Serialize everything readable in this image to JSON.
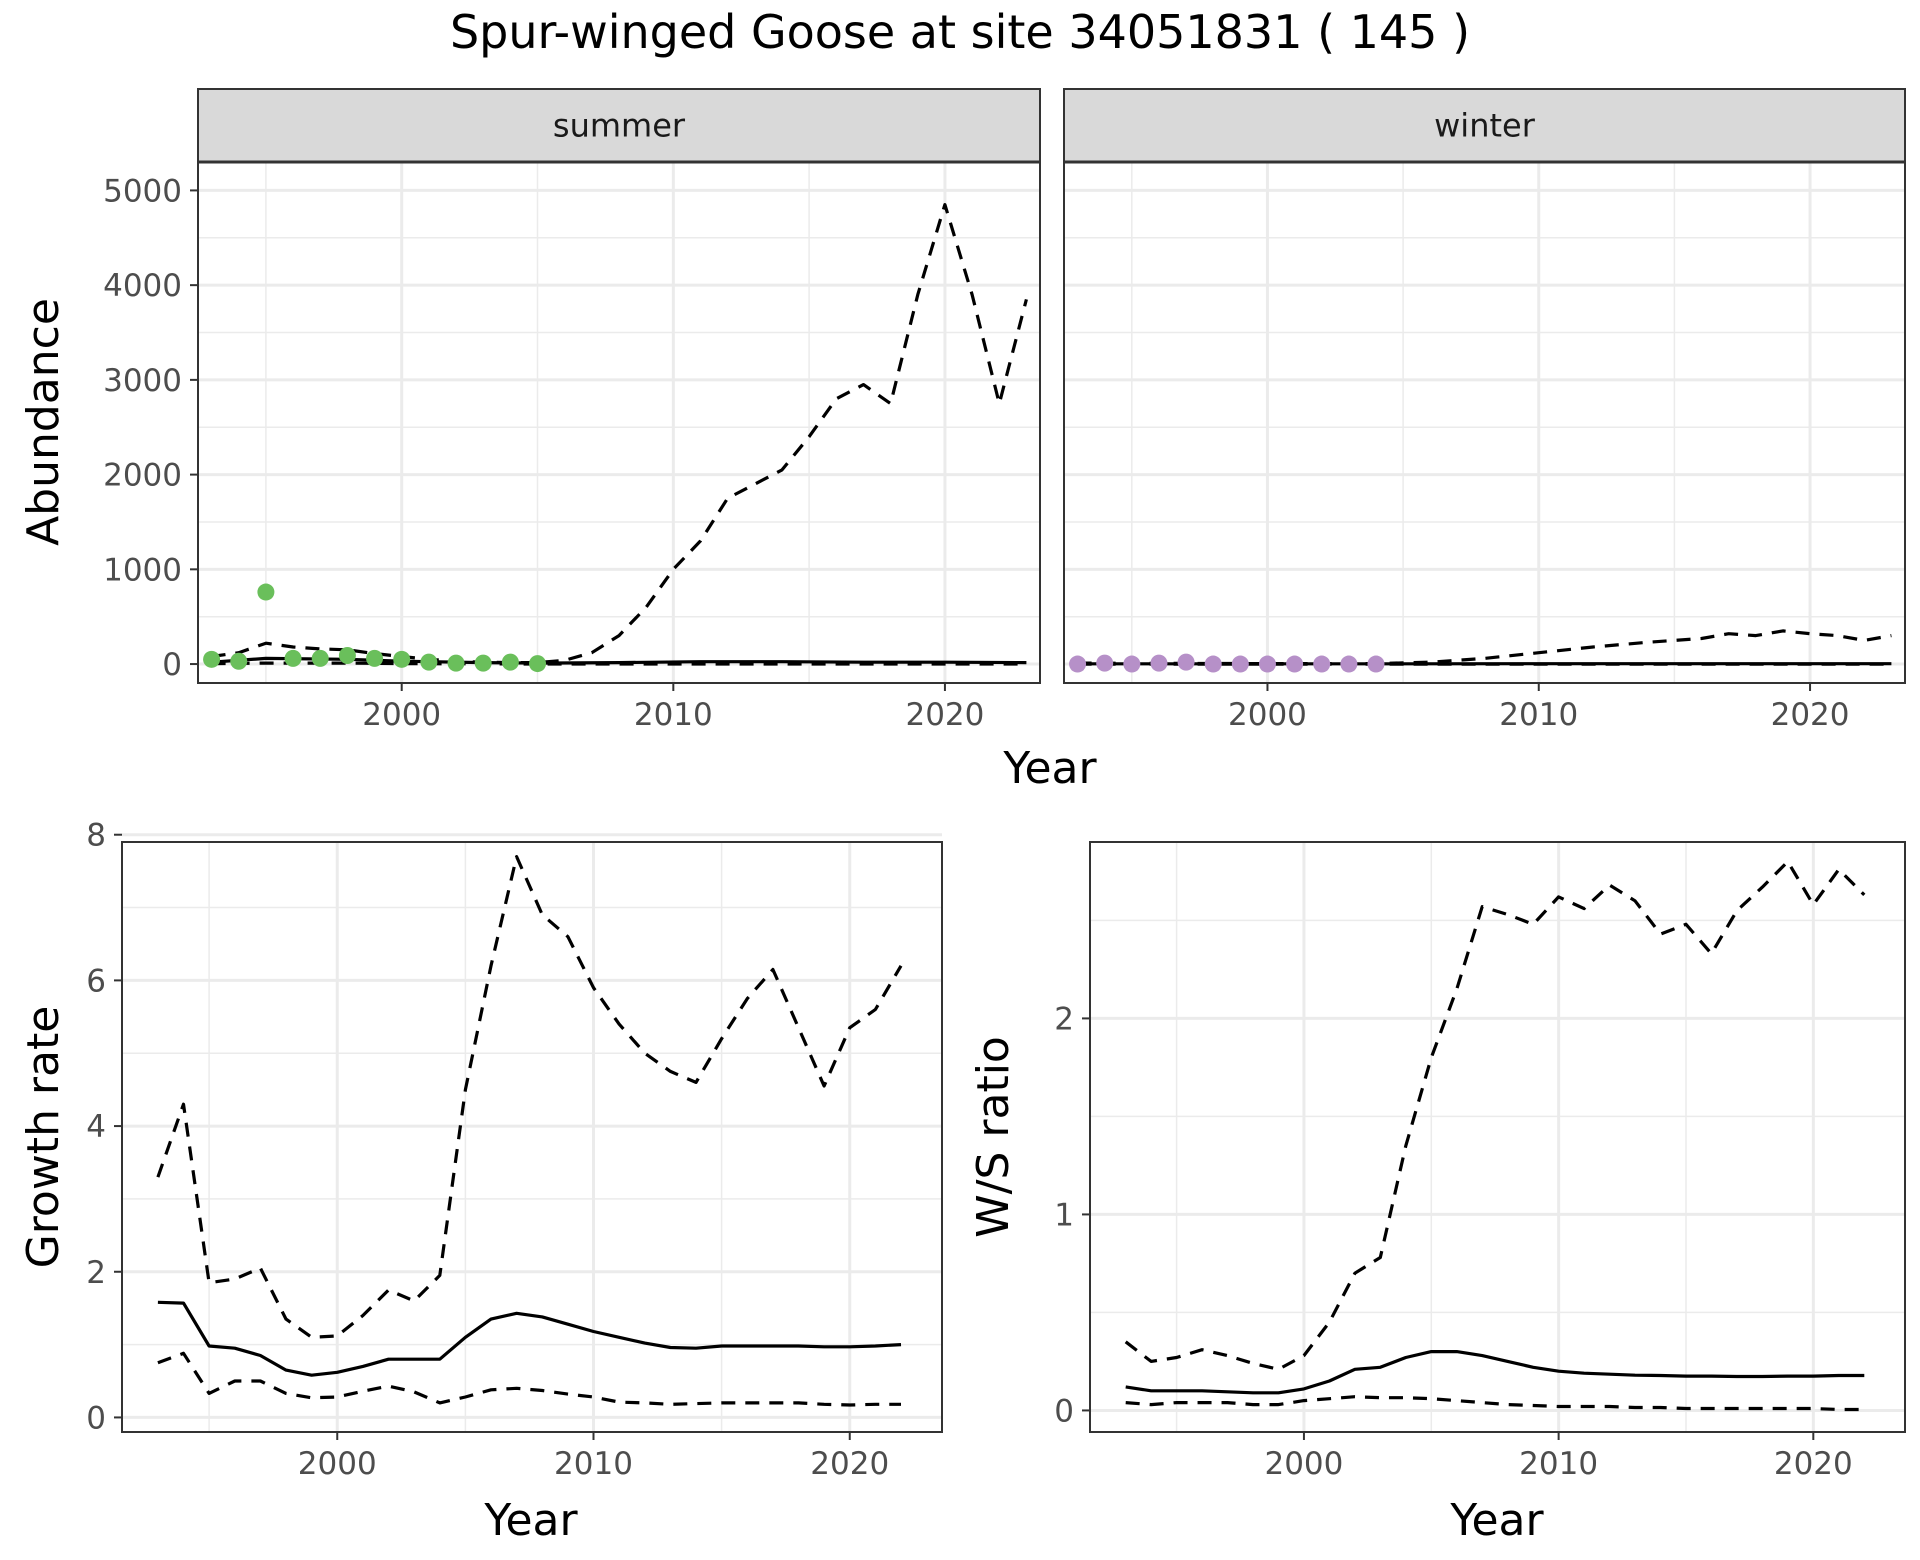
{
  "title": "Spur-winged Goose at site 34051831 ( 145 )",
  "colors": {
    "summer_points": "#6abf5b",
    "winter_points": "#b690c8",
    "lines": "#000000",
    "strip_fill": "#d9d9d9",
    "grid": "#ebebeb"
  },
  "chart_data": [
    {
      "type": "line",
      "panel": "summer",
      "strip_label": "summer",
      "xlabel": "Year",
      "ylabel": "Abundance",
      "xlim": [
        1992.5,
        2023.5
      ],
      "ylim": [
        -200,
        5300
      ],
      "x_ticks": [
        2000,
        2010,
        2020
      ],
      "x_tick_labels": [
        "2000",
        "2010",
        "2020"
      ],
      "y_ticks": [
        0,
        1000,
        2000,
        3000,
        4000,
        5000
      ],
      "y_tick_labels": [
        "0",
        "1000",
        "2000",
        "3000",
        "4000",
        "5000"
      ],
      "grid": true,
      "observations": {
        "color": "#6abf5b",
        "x": [
          1993,
          1994,
          1995,
          1996,
          1997,
          1998,
          1999,
          2000,
          2001,
          2002,
          2003,
          2004,
          2005
        ],
        "y": [
          50,
          30,
          760,
          60,
          60,
          90,
          60,
          50,
          20,
          10,
          10,
          20,
          5
        ]
      },
      "series": [
        {
          "style": "solid",
          "x": [
            1993,
            1995,
            1998,
            2000,
            2003,
            2005,
            2008,
            2011,
            2014,
            2017,
            2020,
            2023
          ],
          "y": [
            20,
            60,
            50,
            30,
            15,
            10,
            15,
            25,
            25,
            20,
            20,
            15
          ]
        },
        {
          "style": "dashed",
          "x": [
            1993,
            1994,
            1995,
            1996,
            1997,
            1998,
            1999,
            2000,
            2001,
            2002,
            2003,
            2004,
            2005,
            2006,
            2007,
            2008,
            2009,
            2010,
            2011,
            2012,
            2013,
            2014,
            2015,
            2016,
            2017,
            2018,
            2019,
            2020,
            2021,
            2022,
            2023
          ],
          "y": [
            80,
            120,
            220,
            180,
            160,
            150,
            110,
            80,
            50,
            30,
            20,
            15,
            15,
            40,
            120,
            300,
            600,
            1000,
            1300,
            1750,
            1900,
            2050,
            2400,
            2800,
            2950,
            2750,
            3900,
            4850,
            3900,
            2750,
            3850
          ]
        },
        {
          "style": "dashed",
          "x": [
            1993,
            1995,
            1998,
            2000,
            2003,
            2005,
            2010,
            2015,
            2020,
            2023
          ],
          "y": [
            5,
            10,
            10,
            5,
            2,
            1,
            1,
            1,
            1,
            1
          ]
        }
      ]
    },
    {
      "type": "line",
      "panel": "winter",
      "strip_label": "winter",
      "xlabel": "Year",
      "ylabel": "Abundance",
      "xlim": [
        1992.5,
        2023.5
      ],
      "ylim": [
        -200,
        5300
      ],
      "x_ticks": [
        2000,
        2010,
        2020
      ],
      "x_tick_labels": [
        "2000",
        "2010",
        "2020"
      ],
      "y_ticks": [
        0,
        1000,
        2000,
        3000,
        4000,
        5000
      ],
      "y_tick_labels": [
        "0",
        "1000",
        "2000",
        "3000",
        "4000",
        "5000"
      ],
      "grid": true,
      "observations": {
        "color": "#b690c8",
        "x": [
          1993,
          1994,
          1995,
          1996,
          1997,
          1998,
          1999,
          2000,
          2001,
          2002,
          2003,
          2004
        ],
        "y": [
          0,
          10,
          0,
          10,
          20,
          0,
          0,
          0,
          0,
          0,
          0,
          0
        ]
      },
      "series": [
        {
          "style": "solid",
          "x": [
            1993,
            2000,
            2005,
            2010,
            2015,
            2020,
            2023
          ],
          "y": [
            3,
            3,
            3,
            4,
            4,
            4,
            4
          ]
        },
        {
          "style": "dashed",
          "x": [
            1993,
            2000,
            2004,
            2006,
            2008,
            2010,
            2012,
            2014,
            2016,
            2017,
            2018,
            2019,
            2020,
            2021,
            2022,
            2023
          ],
          "y": [
            10,
            5,
            5,
            20,
            60,
            120,
            180,
            230,
            270,
            320,
            300,
            350,
            320,
            300,
            250,
            300
          ]
        },
        {
          "style": "dashed",
          "x": [
            1993,
            2023
          ],
          "y": [
            0,
            0
          ]
        }
      ]
    },
    {
      "type": "line",
      "panel": "growth",
      "xlabel": "Year",
      "ylabel": "Growth rate",
      "xlim": [
        1991.6,
        2023.6
      ],
      "ylim": [
        -0.2,
        7.9
      ],
      "x_ticks": [
        2000,
        2010,
        2020
      ],
      "x_tick_labels": [
        "2000",
        "2010",
        "2020"
      ],
      "y_ticks": [
        0,
        2,
        4,
        6,
        8
      ],
      "y_tick_labels": [
        "0",
        "2",
        "4",
        "6",
        "8"
      ],
      "grid": true,
      "series": [
        {
          "style": "solid",
          "x": [
            1993,
            1994,
            1995,
            1996,
            1997,
            1998,
            1999,
            2000,
            2001,
            2002,
            2003,
            2004,
            2005,
            2006,
            2007,
            2008,
            2009,
            2010,
            2011,
            2012,
            2013,
            2014,
            2015,
            2016,
            2017,
            2018,
            2019,
            2020,
            2021,
            2022
          ],
          "y": [
            1.58,
            1.57,
            0.98,
            0.95,
            0.85,
            0.65,
            0.58,
            0.62,
            0.7,
            0.8,
            0.8,
            0.8,
            1.1,
            1.35,
            1.43,
            1.38,
            1.28,
            1.18,
            1.1,
            1.02,
            0.96,
            0.95,
            0.98,
            0.98,
            0.98,
            0.98,
            0.97,
            0.97,
            0.98,
            1.0
          ]
        },
        {
          "style": "dashed",
          "x": [
            1993,
            1994,
            1995,
            1996,
            1997,
            1998,
            1999,
            2000,
            2001,
            2002,
            2003,
            2004,
            2005,
            2006,
            2007,
            2008,
            2009,
            2010,
            2011,
            2012,
            2013,
            2014,
            2015,
            2016,
            2017,
            2018,
            2019,
            2020,
            2021,
            2022
          ],
          "y": [
            3.3,
            4.3,
            1.85,
            1.9,
            2.05,
            1.35,
            1.1,
            1.12,
            1.4,
            1.75,
            1.6,
            1.95,
            4.5,
            6.2,
            7.7,
            6.9,
            6.6,
            5.9,
            5.4,
            5.0,
            4.75,
            4.6,
            5.2,
            5.75,
            6.15,
            5.35,
            4.55,
            5.35,
            5.6,
            6.2
          ]
        },
        {
          "style": "dashed",
          "x": [
            1993,
            1994,
            1995,
            1996,
            1997,
            1998,
            1999,
            2000,
            2001,
            2002,
            2003,
            2004,
            2005,
            2006,
            2007,
            2008,
            2009,
            2010,
            2011,
            2012,
            2013,
            2014,
            2015,
            2016,
            2017,
            2018,
            2019,
            2020,
            2021,
            2022
          ],
          "y": [
            0.75,
            0.88,
            0.33,
            0.5,
            0.5,
            0.33,
            0.27,
            0.28,
            0.36,
            0.43,
            0.35,
            0.2,
            0.28,
            0.38,
            0.4,
            0.37,
            0.32,
            0.28,
            0.21,
            0.2,
            0.18,
            0.19,
            0.2,
            0.2,
            0.2,
            0.2,
            0.18,
            0.17,
            0.18,
            0.18
          ]
        }
      ]
    },
    {
      "type": "line",
      "panel": "ws_ratio",
      "xlabel": "Year",
      "ylabel": "W/S ratio",
      "xlim": [
        1991.6,
        2023.6
      ],
      "ylim": [
        -0.11,
        2.9
      ],
      "x_ticks": [
        2000,
        2010,
        2020
      ],
      "x_tick_labels": [
        "2000",
        "2010",
        "2020"
      ],
      "y_ticks": [
        0,
        1,
        2
      ],
      "y_tick_labels": [
        "0",
        "1",
        "2"
      ],
      "grid": true,
      "series": [
        {
          "style": "solid",
          "x": [
            1993,
            1994,
            1995,
            1996,
            1997,
            1998,
            1999,
            2000,
            2001,
            2002,
            2003,
            2004,
            2005,
            2006,
            2007,
            2008,
            2009,
            2010,
            2011,
            2012,
            2013,
            2014,
            2015,
            2016,
            2017,
            2018,
            2019,
            2020,
            2021,
            2022
          ],
          "y": [
            0.12,
            0.1,
            0.1,
            0.1,
            0.095,
            0.09,
            0.09,
            0.11,
            0.15,
            0.21,
            0.22,
            0.27,
            0.3,
            0.3,
            0.28,
            0.25,
            0.22,
            0.2,
            0.19,
            0.185,
            0.18,
            0.178,
            0.175,
            0.175,
            0.173,
            0.173,
            0.175,
            0.175,
            0.178,
            0.178
          ]
        },
        {
          "style": "dashed",
          "x": [
            1993,
            1994,
            1995,
            1996,
            1997,
            1998,
            1999,
            2000,
            2001,
            2002,
            2003,
            2004,
            2005,
            2006,
            2007,
            2008,
            2009,
            2010,
            2011,
            2012,
            2013,
            2014,
            2015,
            2016,
            2017,
            2018,
            2019,
            2020,
            2021,
            2022
          ],
          "y": [
            0.35,
            0.25,
            0.27,
            0.31,
            0.28,
            0.24,
            0.21,
            0.28,
            0.45,
            0.7,
            0.78,
            1.35,
            1.8,
            2.15,
            2.57,
            2.53,
            2.48,
            2.62,
            2.56,
            2.68,
            2.6,
            2.43,
            2.48,
            2.33,
            2.55,
            2.67,
            2.8,
            2.58,
            2.76,
            2.63
          ]
        },
        {
          "style": "dashed",
          "x": [
            1993,
            1994,
            1995,
            1996,
            1997,
            1998,
            1999,
            2000,
            2001,
            2002,
            2003,
            2004,
            2005,
            2006,
            2007,
            2008,
            2009,
            2010,
            2011,
            2012,
            2013,
            2014,
            2015,
            2016,
            2017,
            2018,
            2019,
            2020,
            2021,
            2022
          ],
          "y": [
            0.04,
            0.03,
            0.04,
            0.04,
            0.04,
            0.03,
            0.03,
            0.05,
            0.06,
            0.07,
            0.065,
            0.065,
            0.06,
            0.05,
            0.04,
            0.03,
            0.025,
            0.02,
            0.02,
            0.02,
            0.015,
            0.015,
            0.01,
            0.01,
            0.01,
            0.01,
            0.01,
            0.01,
            0.005,
            0.005
          ]
        }
      ]
    }
  ]
}
